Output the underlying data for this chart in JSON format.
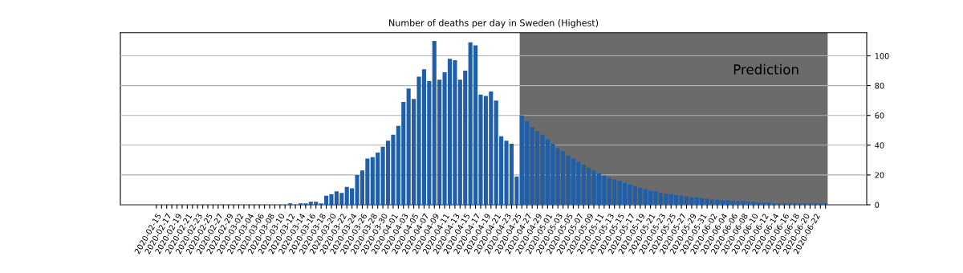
{
  "chart_data": {
    "type": "bar",
    "title": "Number of deaths per day in Sweden (Highest)",
    "x": [
      "2020-02-15",
      "2020-02-16",
      "2020-02-17",
      "2020-02-18",
      "2020-02-19",
      "2020-02-20",
      "2020-02-21",
      "2020-02-22",
      "2020-02-23",
      "2020-02-24",
      "2020-02-25",
      "2020-02-26",
      "2020-02-27",
      "2020-02-28",
      "2020-02-29",
      "2020-03-01",
      "2020-03-02",
      "2020-03-03",
      "2020-03-04",
      "2020-03-05",
      "2020-03-06",
      "2020-03-07",
      "2020-03-08",
      "2020-03-09",
      "2020-03-10",
      "2020-03-11",
      "2020-03-12",
      "2020-03-13",
      "2020-03-14",
      "2020-03-15",
      "2020-03-16",
      "2020-03-17",
      "2020-03-18",
      "2020-03-19",
      "2020-03-20",
      "2020-03-21",
      "2020-03-22",
      "2020-03-23",
      "2020-03-24",
      "2020-03-25",
      "2020-03-26",
      "2020-03-27",
      "2020-03-28",
      "2020-03-29",
      "2020-03-30",
      "2020-03-31",
      "2020-04-01",
      "2020-04-02",
      "2020-04-03",
      "2020-04-04",
      "2020-04-05",
      "2020-04-06",
      "2020-04-07",
      "2020-04-08",
      "2020-04-09",
      "2020-04-10",
      "2020-04-11",
      "2020-04-12",
      "2020-04-13",
      "2020-04-14",
      "2020-04-15",
      "2020-04-16",
      "2020-04-17",
      "2020-04-18",
      "2020-04-19",
      "2020-04-20",
      "2020-04-21",
      "2020-04-22",
      "2020-04-23",
      "2020-04-24",
      "2020-04-25",
      "2020-04-26",
      "2020-04-27",
      "2020-04-28",
      "2020-04-29",
      "2020-04-30",
      "2020-05-01",
      "2020-05-02",
      "2020-05-03",
      "2020-05-04",
      "2020-05-05",
      "2020-05-06",
      "2020-05-07",
      "2020-05-08",
      "2020-05-09",
      "2020-05-10",
      "2020-05-11",
      "2020-05-12",
      "2020-05-13",
      "2020-05-14",
      "2020-05-15",
      "2020-05-16",
      "2020-05-17",
      "2020-05-18",
      "2020-05-19",
      "2020-05-20",
      "2020-05-21",
      "2020-05-22",
      "2020-05-23",
      "2020-05-24",
      "2020-05-25",
      "2020-05-26",
      "2020-05-27",
      "2020-05-28",
      "2020-05-29",
      "2020-05-30",
      "2020-05-31",
      "2020-06-01",
      "2020-06-02",
      "2020-06-03",
      "2020-06-04",
      "2020-06-05",
      "2020-06-06",
      "2020-06-07",
      "2020-06-08",
      "2020-06-09",
      "2020-06-10",
      "2020-06-11",
      "2020-06-12",
      "2020-06-13",
      "2020-06-14",
      "2020-06-15",
      "2020-06-16",
      "2020-06-17",
      "2020-06-18",
      "2020-06-19",
      "2020-06-20",
      "2020-06-21",
      "2020-06-22",
      "2020-06-23",
      "2020-06-24"
    ],
    "values": [
      0,
      0,
      0,
      0,
      0,
      0,
      0,
      0,
      0,
      0,
      0,
      0,
      0,
      0,
      0,
      0,
      0,
      0,
      0,
      0,
      0,
      0,
      0,
      0,
      0,
      0,
      1,
      0,
      1,
      1,
      2,
      2,
      1,
      6,
      7,
      9,
      8,
      12,
      11,
      20,
      23,
      31,
      32,
      35,
      39,
      43,
      47,
      53,
      69,
      78,
      71,
      86,
      91,
      83,
      110,
      84,
      89,
      98,
      97,
      84,
      90,
      109,
      107,
      74,
      73,
      76,
      70,
      46,
      43,
      41,
      19,
      60,
      56,
      52,
      49.5,
      47,
      44,
      41,
      38,
      36,
      33,
      31,
      29,
      27,
      25,
      23,
      21,
      19.5,
      18,
      17,
      16,
      14.5,
      13.5,
      12.5,
      11.5,
      10.5,
      9.5,
      9,
      8,
      7.5,
      7,
      6.5,
      6,
      5.5,
      5,
      5,
      4.5,
      4,
      3.5,
      3.5,
      3,
      3,
      2.5,
      2.5,
      2.5,
      2,
      2,
      1.5,
      1.5,
      1.5,
      1,
      1,
      1,
      1,
      1,
      1,
      1,
      1,
      1,
      1,
      1
    ],
    "color": "#1f5ea8",
    "xlim": [
      "2020-02-08",
      "2020-07-02"
    ],
    "xticks": [
      "2020-02-15",
      {
        "value": "2020-02-16",
        "label": null
      },
      "2020-02-17",
      {
        "value": "2020-02-18",
        "label": null
      },
      "2020-02-19",
      {
        "value": "2020-02-20",
        "label": null
      },
      "2020-02-21",
      {
        "value": "2020-02-22",
        "label": null
      },
      "2020-02-23",
      {
        "value": "2020-02-24",
        "label": null
      },
      "2020-02-25",
      {
        "value": "2020-02-26",
        "label": null
      },
      "2020-02-27",
      {
        "value": "2020-02-28",
        "label": null
      },
      "2020-02-29",
      {
        "value": "2020-03-01",
        "label": null
      },
      "2020-03-02",
      {
        "value": "2020-03-03",
        "label": null
      },
      "2020-03-04",
      {
        "value": "2020-03-05",
        "label": null
      },
      "2020-03-06",
      {
        "value": "2020-03-07",
        "label": null
      },
      "2020-03-08",
      {
        "value": "2020-03-09",
        "label": null
      },
      "2020-03-10",
      {
        "value": "2020-03-11",
        "label": null
      },
      "2020-03-12",
      {
        "value": "2020-03-13",
        "label": null
      },
      "2020-03-14",
      {
        "value": "2020-03-15",
        "label": null
      },
      "2020-03-16",
      {
        "value": "2020-03-17",
        "label": null
      },
      "2020-03-18",
      {
        "value": "2020-03-19",
        "label": null
      },
      "2020-03-20",
      {
        "value": "2020-03-21",
        "label": null
      },
      "2020-03-22",
      {
        "value": "2020-03-23",
        "label": null
      },
      "2020-03-24",
      {
        "value": "2020-03-25",
        "label": null
      },
      "2020-03-26",
      {
        "value": "2020-03-27",
        "label": null
      },
      "2020-03-28",
      {
        "value": "2020-03-29",
        "label": null
      },
      "2020-03-30",
      {
        "value": "2020-03-31",
        "label": null
      },
      "2020-04-01",
      {
        "value": "2020-04-02",
        "label": null
      },
      "2020-04-03",
      {
        "value": "2020-04-04",
        "label": null
      },
      "2020-04-05",
      {
        "value": "2020-04-06",
        "label": null
      },
      "2020-04-07",
      {
        "value": "2020-04-08",
        "label": null
      },
      "2020-04-09",
      {
        "value": "2020-04-10",
        "label": null
      },
      "2020-04-11",
      {
        "value": "2020-04-12",
        "label": null
      },
      "2020-04-13",
      {
        "value": "2020-04-14",
        "label": null
      },
      "2020-04-15",
      {
        "value": "2020-04-16",
        "label": null
      },
      "2020-04-17",
      {
        "value": "2020-04-18",
        "label": null
      },
      "2020-04-19",
      {
        "value": "2020-04-20",
        "label": null
      },
      "2020-04-21",
      {
        "value": "2020-04-22",
        "label": null
      },
      "2020-04-23",
      {
        "value": "2020-04-24",
        "label": null
      },
      "2020-04-25",
      {
        "value": "2020-04-26",
        "label": null
      },
      "2020-04-27",
      {
        "value": "2020-04-28",
        "label": null
      },
      "2020-04-29",
      {
        "value": "2020-04-30",
        "label": null
      },
      "2020-05-01",
      {
        "value": "2020-05-02",
        "label": null
      },
      "2020-05-03",
      {
        "value": "2020-05-04",
        "label": null
      },
      "2020-05-05",
      {
        "value": "2020-05-06",
        "label": null
      },
      "2020-05-07",
      {
        "value": "2020-05-08",
        "label": null
      },
      "2020-05-09",
      {
        "value": "2020-05-10",
        "label": null
      },
      "2020-05-11",
      {
        "value": "2020-05-12",
        "label": null
      },
      "2020-05-13",
      {
        "value": "2020-05-14",
        "label": null
      },
      "2020-05-15",
      {
        "value": "2020-05-16",
        "label": null
      },
      "2020-05-17",
      {
        "value": "2020-05-18",
        "label": null
      },
      "2020-05-19",
      {
        "value": "2020-05-20",
        "label": null
      },
      "2020-05-21",
      {
        "value": "2020-05-22",
        "label": null
      },
      "2020-05-23",
      {
        "value": "2020-05-24",
        "label": null
      },
      "2020-05-25",
      {
        "value": "2020-05-26",
        "label": null
      },
      "2020-05-27",
      {
        "value": "2020-05-28",
        "label": null
      },
      "2020-05-29",
      {
        "value": "2020-05-30",
        "label": null
      },
      "2020-05-31",
      {
        "value": "2020-06-01",
        "label": null
      },
      "2020-06-02",
      {
        "value": "2020-06-03",
        "label": null
      },
      "2020-06-04",
      {
        "value": "2020-06-05",
        "label": null
      },
      "2020-06-06",
      {
        "value": "2020-06-07",
        "label": null
      },
      "2020-06-08",
      {
        "value": "2020-06-09",
        "label": null
      },
      "2020-06-10",
      {
        "value": "2020-06-11",
        "label": null
      },
      "2020-06-12",
      {
        "value": "2020-06-13",
        "label": null
      },
      "2020-06-14",
      {
        "value": "2020-06-15",
        "label": null
      },
      "2020-06-16",
      {
        "value": "2020-06-17",
        "label": null
      },
      "2020-06-18",
      {
        "value": "2020-06-19",
        "label": null
      },
      "2020-06-20",
      {
        "value": "2020-06-21",
        "label": null
      },
      "2020-06-22",
      {
        "value": "2020-06-23",
        "label": null
      },
      {
        "value": "2020-06-24",
        "label": null
      }
    ],
    "ylim": [
      0,
      115.5
    ],
    "yticks": [
      0,
      20,
      40,
      60,
      80,
      100
    ],
    "grid": "y",
    "bands": [
      {
        "axis": "x",
        "from": "2020-04-25T14:00",
        "to": "2020-06-24T10:00",
        "label": "Prediction",
        "color": "#6b6b6b"
      }
    ]
  }
}
